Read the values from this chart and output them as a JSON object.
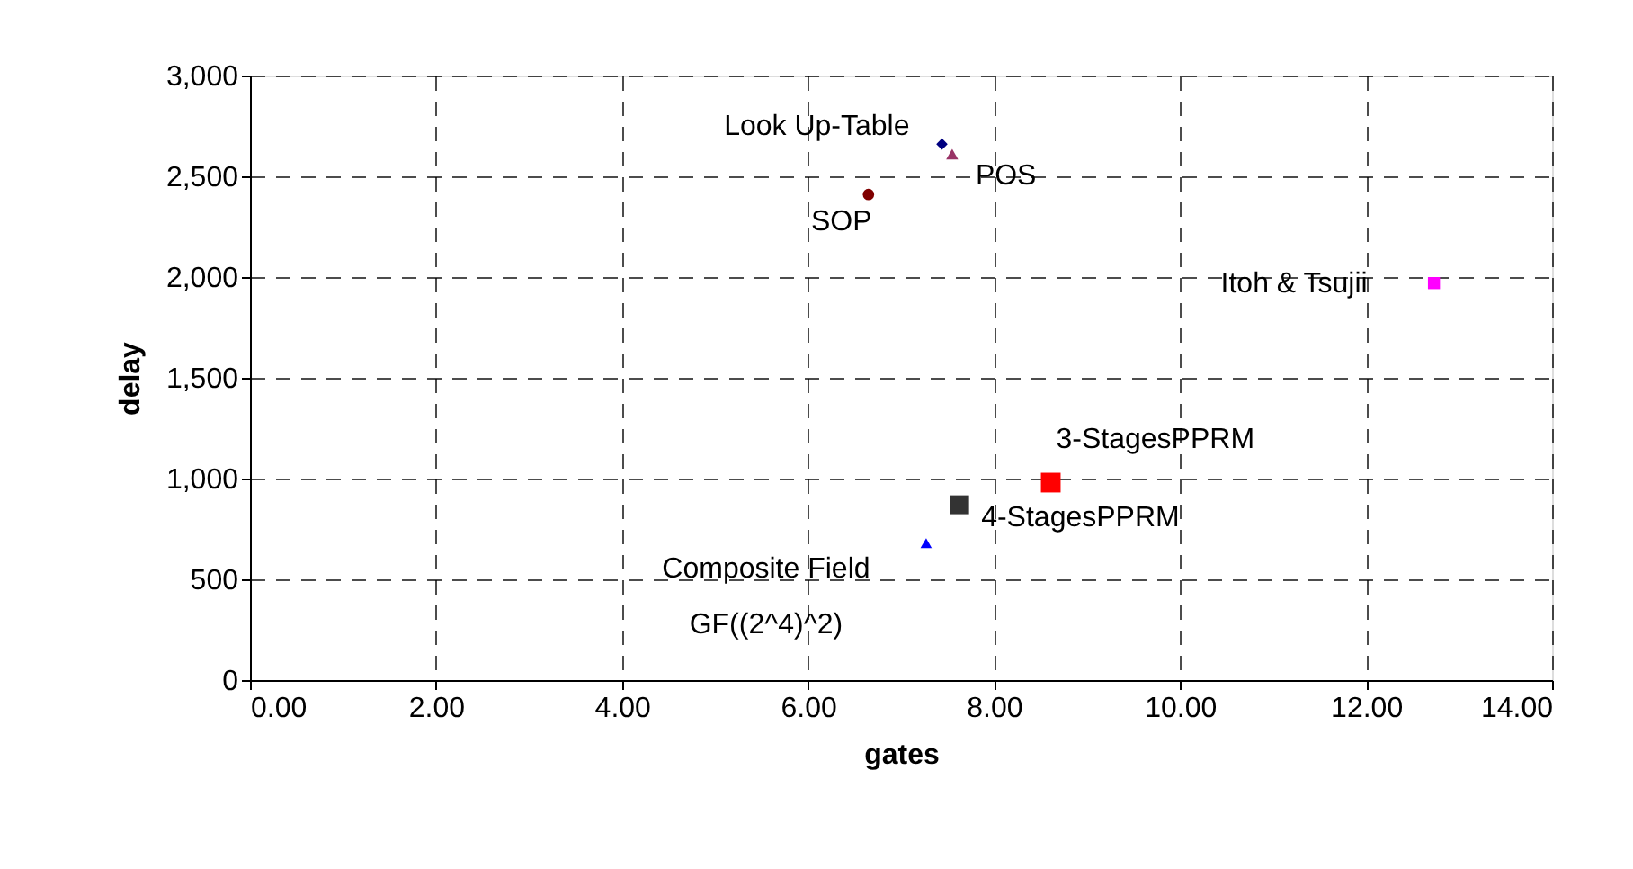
{
  "chart_data": {
    "type": "scatter",
    "xlabel": "gates",
    "ylabel": "delay",
    "xlim": [
      0,
      14
    ],
    "xticks": [
      {
        "value": 0,
        "label": "0.00"
      },
      {
        "value": 2,
        "label": "2.00"
      },
      {
        "value": 4,
        "label": "4.00"
      },
      {
        "value": 6,
        "label": "6.00"
      },
      {
        "value": 8,
        "label": "8.00"
      },
      {
        "value": 10,
        "label": "10.00"
      },
      {
        "value": 12,
        "label": "12.00"
      },
      {
        "value": 14,
        "label": "14.00"
      }
    ],
    "ylim": [
      0,
      3000
    ],
    "yticks": [
      0,
      {
        "value": 500,
        "label": "500"
      },
      {
        "value": 1000,
        "label": "1,000"
      },
      {
        "value": 1500,
        "label": "1,500"
      },
      {
        "value": 2000,
        "label": "2,000"
      },
      {
        "value": 2500,
        "label": "2,500"
      },
      {
        "value": 3000,
        "label": "3,000"
      }
    ],
    "grid": true,
    "legend": false,
    "series": [
      {
        "name": "Look Up-Table",
        "color": "#000080",
        "marker": "diamond",
        "x": [
          7.44
        ],
        "values": [
          2660
        ]
      },
      {
        "name": "POS",
        "color": "#993366",
        "marker": "triangle",
        "x": [
          7.55
        ],
        "values": [
          2610
        ]
      },
      {
        "name": "SOP",
        "color": "#800000",
        "marker": "circle",
        "x": [
          6.65
        ],
        "values": [
          2410
        ]
      },
      {
        "name": "Itoh & Tsujii",
        "color": "#ff00ff",
        "marker": "square",
        "x": [
          12.73
        ],
        "values": [
          1970
        ]
      },
      {
        "name": "3-StagesPPRM",
        "color": "#ff0000",
        "marker": "square",
        "x": [
          8.61
        ],
        "values": [
          980
        ]
      },
      {
        "name": "4-StagesPPRM",
        "color": "#333333",
        "marker": "square",
        "x": [
          7.63
        ],
        "values": [
          870
        ]
      },
      {
        "name": "Composite Field\nGF((2^4)^2)",
        "color": "#0000ff",
        "marker": "triangle",
        "x": [
          7.27
        ],
        "values": [
          680
        ]
      }
    ]
  }
}
